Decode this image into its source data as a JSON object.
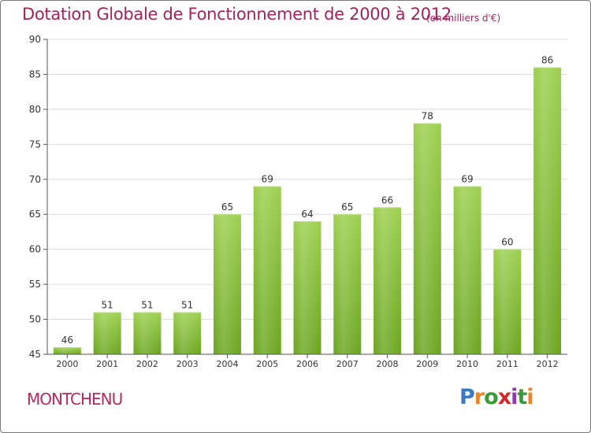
{
  "title": "Dotation Globale de Fonctionnement de 2000 à 2012",
  "subtitle": "(en milliers d'€)",
  "commune": "MONTCHENU",
  "logo": {
    "text": "Proxiti",
    "letter_colors": [
      "#3a78c3",
      "#e8862c",
      "#3a9a3a",
      "#d62a2a",
      "#8a3bb0",
      "#3a9a3a",
      "#e8862c"
    ]
  },
  "colors": {
    "bar_top": "#9ccf4e",
    "bar_bottom": "#6aa51f",
    "title": "#a0235a",
    "grid": "#dddddd",
    "axis": "#555555"
  },
  "chart_data": {
    "type": "bar",
    "title": "Dotation Globale de Fonctionnement de 2000 à 2012",
    "subtitle": "(en milliers d'€)",
    "categories": [
      "2000",
      "2001",
      "2002",
      "2003",
      "2004",
      "2005",
      "2006",
      "2007",
      "2008",
      "2009",
      "2010",
      "2011",
      "2012"
    ],
    "values": [
      46,
      51,
      51,
      51,
      65,
      69,
      64,
      65,
      66,
      78,
      69,
      60,
      86
    ],
    "ylim": [
      45,
      90
    ],
    "yticks": [
      45,
      50,
      55,
      60,
      65,
      70,
      75,
      80,
      85,
      90
    ],
    "grid": true,
    "data_labels": true,
    "xlabel": "",
    "ylabel": ""
  }
}
